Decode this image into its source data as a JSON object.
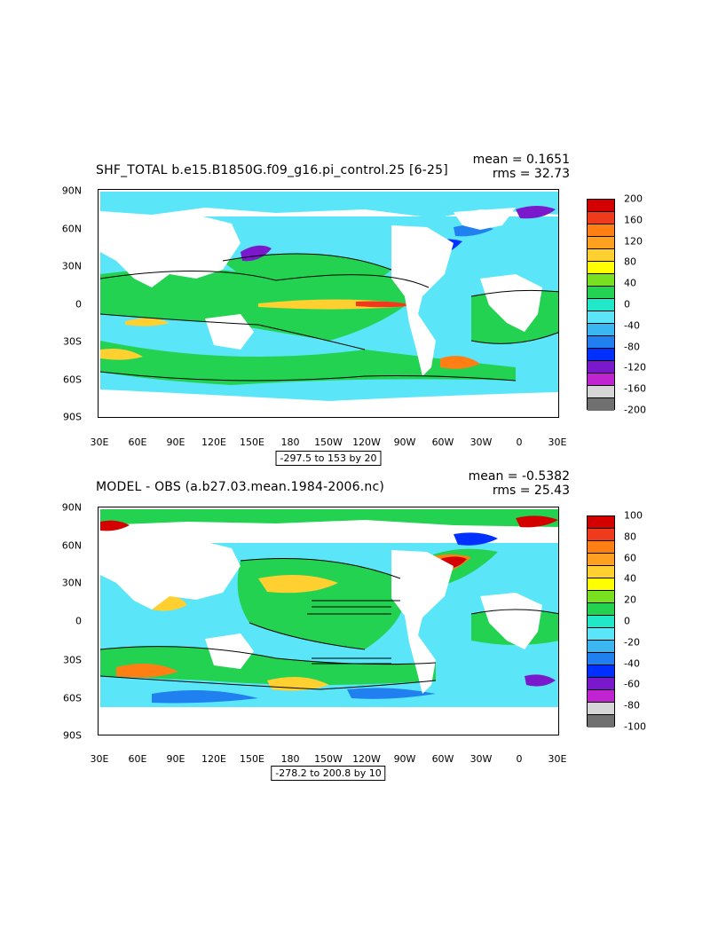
{
  "panels": [
    {
      "title": "SHF_TOTAL b.e15.B1850G.f09_g16.pi_control.25 [6-25]",
      "mean_text": "mean = 0.1651",
      "rms_text": "rms = 32.73",
      "range_text": "-297.5 to 153 by 20",
      "colorbar_labels": [
        "200",
        "160",
        "120",
        "80",
        "40",
        "0",
        "-40",
        "-80",
        "-120",
        "-160",
        "-200"
      ],
      "colorbar_colors": [
        "#d40000",
        "#f03a1c",
        "#ff7f14",
        "#ffa020",
        "#ffd030",
        "#ffff00",
        "#78e020",
        "#22d250",
        "#20e8c8",
        "#5ae6f8",
        "#3cb6f0",
        "#2080f0",
        "#0030ff",
        "#7a18cc",
        "#c024d0",
        "#d6d6d6",
        "#707070"
      ]
    },
    {
      "title": "MODEL - OBS (a.b27.03.mean.1984-2006.nc)",
      "mean_text": "mean = -0.5382",
      "rms_text": "rms = 25.43",
      "range_text": "-278.2 to 200.8 by 10",
      "colorbar_labels": [
        "100",
        "80",
        "60",
        "40",
        "20",
        "0",
        "-20",
        "-40",
        "-60",
        "-80",
        "-100"
      ],
      "colorbar_colors": [
        "#d40000",
        "#f03a1c",
        "#ff7f14",
        "#ffa020",
        "#ffd030",
        "#ffff00",
        "#78e020",
        "#22d250",
        "#20e8c8",
        "#5ae6f8",
        "#3cb6f0",
        "#2080f0",
        "#0030ff",
        "#7a18cc",
        "#c024d0",
        "#d6d6d6",
        "#707070"
      ]
    }
  ],
  "axes": {
    "lat_labels": [
      "90N",
      "60N",
      "30N",
      "0",
      "30S",
      "60S",
      "90S"
    ],
    "lon_labels": [
      "30E",
      "60E",
      "90E",
      "120E",
      "150E",
      "180",
      "150W",
      "120W",
      "90W",
      "60W",
      "30W",
      "0",
      "30E"
    ]
  }
}
